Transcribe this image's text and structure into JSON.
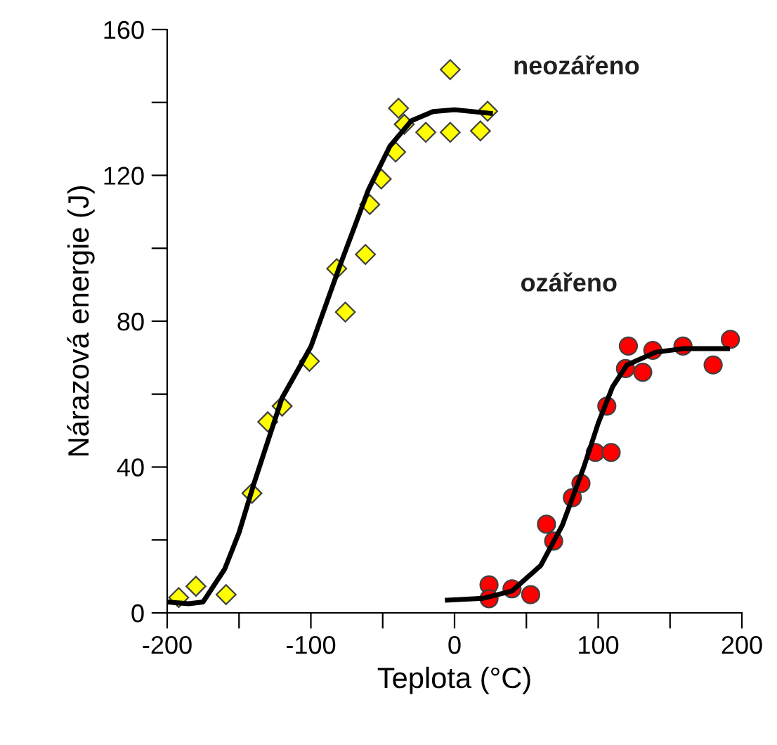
{
  "chart_data": {
    "type": "scatter",
    "xlabel": "Teplota (°C)",
    "ylabel": "Nárazová energie (J)",
    "xlim": [
      -200,
      200
    ],
    "ylim": [
      0,
      160
    ],
    "xticks": [
      -200,
      {
        "value": -150,
        "label": null
      },
      -100,
      {
        "value": -50,
        "label": null
      },
      0,
      {
        "value": 50,
        "label": null
      },
      100,
      {
        "value": 150,
        "label": null
      },
      200
    ],
    "yticks": [
      0,
      {
        "value": 20,
        "label": null
      },
      40,
      {
        "value": 60,
        "label": null
      },
      80,
      {
        "value": 100,
        "label": null
      },
      120,
      {
        "value": 140,
        "label": null
      },
      160
    ],
    "grid": false,
    "legend": false,
    "series": [
      {
        "name": "neozářeno",
        "marker": "diamond",
        "color": "#ffff00",
        "x": [
          -192,
          -180,
          -159,
          -141,
          -130,
          -120,
          -101,
          -76,
          -82,
          -62,
          -59,
          -51,
          -41,
          -39,
          -35,
          -20,
          -3,
          -3,
          18,
          23
        ],
        "values": [
          4.2,
          7.3,
          5,
          32.8,
          52.4,
          56.7,
          69,
          82.5,
          94.4,
          98.3,
          112,
          119,
          126.4,
          138.4,
          134,
          131.8,
          149,
          131.8,
          132.2,
          137.6
        ]
      },
      {
        "name": "ozářeno",
        "marker": "circle",
        "color": "#ff0000",
        "x": [
          121,
          138,
          159,
          192,
          180,
          119,
          131,
          106,
          98,
          109,
          88,
          82,
          64,
          69,
          24,
          24,
          40,
          53
        ],
        "values": [
          73.2,
          72,
          73.2,
          75,
          68,
          67,
          66,
          56.7,
          44,
          44,
          35.5,
          31.6,
          24.3,
          19.7,
          7.7,
          3.9,
          6.6,
          5
        ]
      },
      {
        "type": "line",
        "color": "#000000",
        "marker": "none",
        "x": [
          -200,
          -185,
          -175,
          -160,
          -150,
          -140,
          -130,
          -120,
          -100,
          -80,
          -60,
          -45,
          -30,
          -15,
          0,
          25
        ],
        "values": [
          3,
          2.5,
          3,
          12,
          22,
          35,
          47,
          59,
          73,
          95,
          116,
          128,
          135,
          137.5,
          138,
          137
        ]
      },
      {
        "type": "line",
        "color": "#000000",
        "marker": "none",
        "x": [
          -5,
          20,
          40,
          60,
          75,
          90,
          100,
          110,
          120,
          140,
          160,
          190
        ],
        "values": [
          3.5,
          4,
          6,
          13,
          24,
          40,
          52,
          62,
          68,
          71.5,
          72.5,
          72.5
        ]
      }
    ]
  }
}
